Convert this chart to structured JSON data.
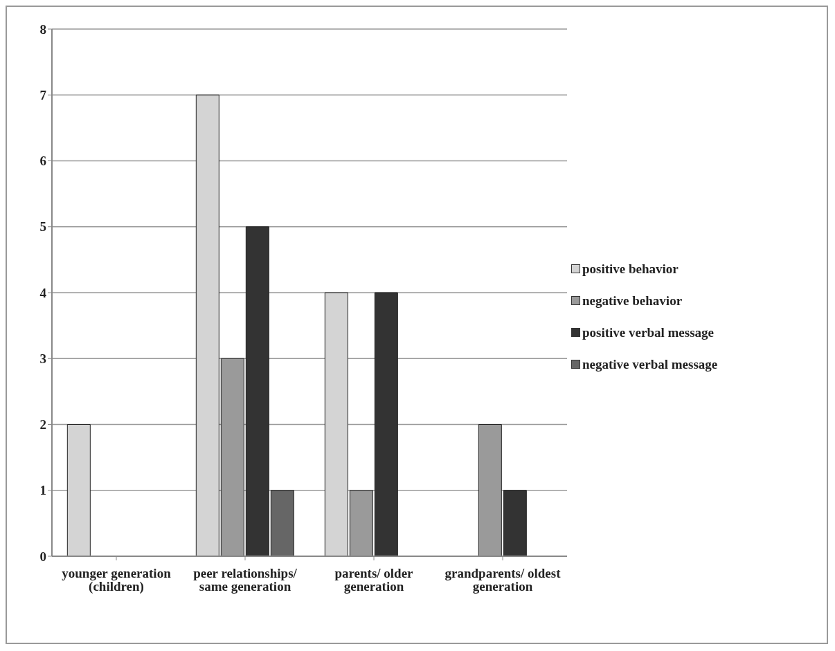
{
  "chart_data": {
    "type": "bar",
    "categories": [
      "younger generation (children)",
      "peer relationships/ same generation",
      "parents/ older generation",
      "grandparents/ oldest generation"
    ],
    "series": [
      {
        "name": "positive behavior",
        "color": "#d4d4d4",
        "values": [
          2,
          7,
          4,
          0
        ]
      },
      {
        "name": "negative behavior",
        "color": "#9a9a9a",
        "values": [
          0,
          3,
          1,
          2
        ]
      },
      {
        "name": "positive verbal message",
        "color": "#333333",
        "values": [
          0,
          5,
          4,
          1
        ]
      },
      {
        "name": "negative verbal message",
        "color": "#666666",
        "values": [
          0,
          1,
          0,
          0
        ]
      }
    ],
    "ylim": [
      0,
      8
    ],
    "yticks": [
      0,
      1,
      2,
      3,
      4,
      5,
      6,
      7,
      8
    ],
    "grid": "y",
    "legend": "right"
  }
}
